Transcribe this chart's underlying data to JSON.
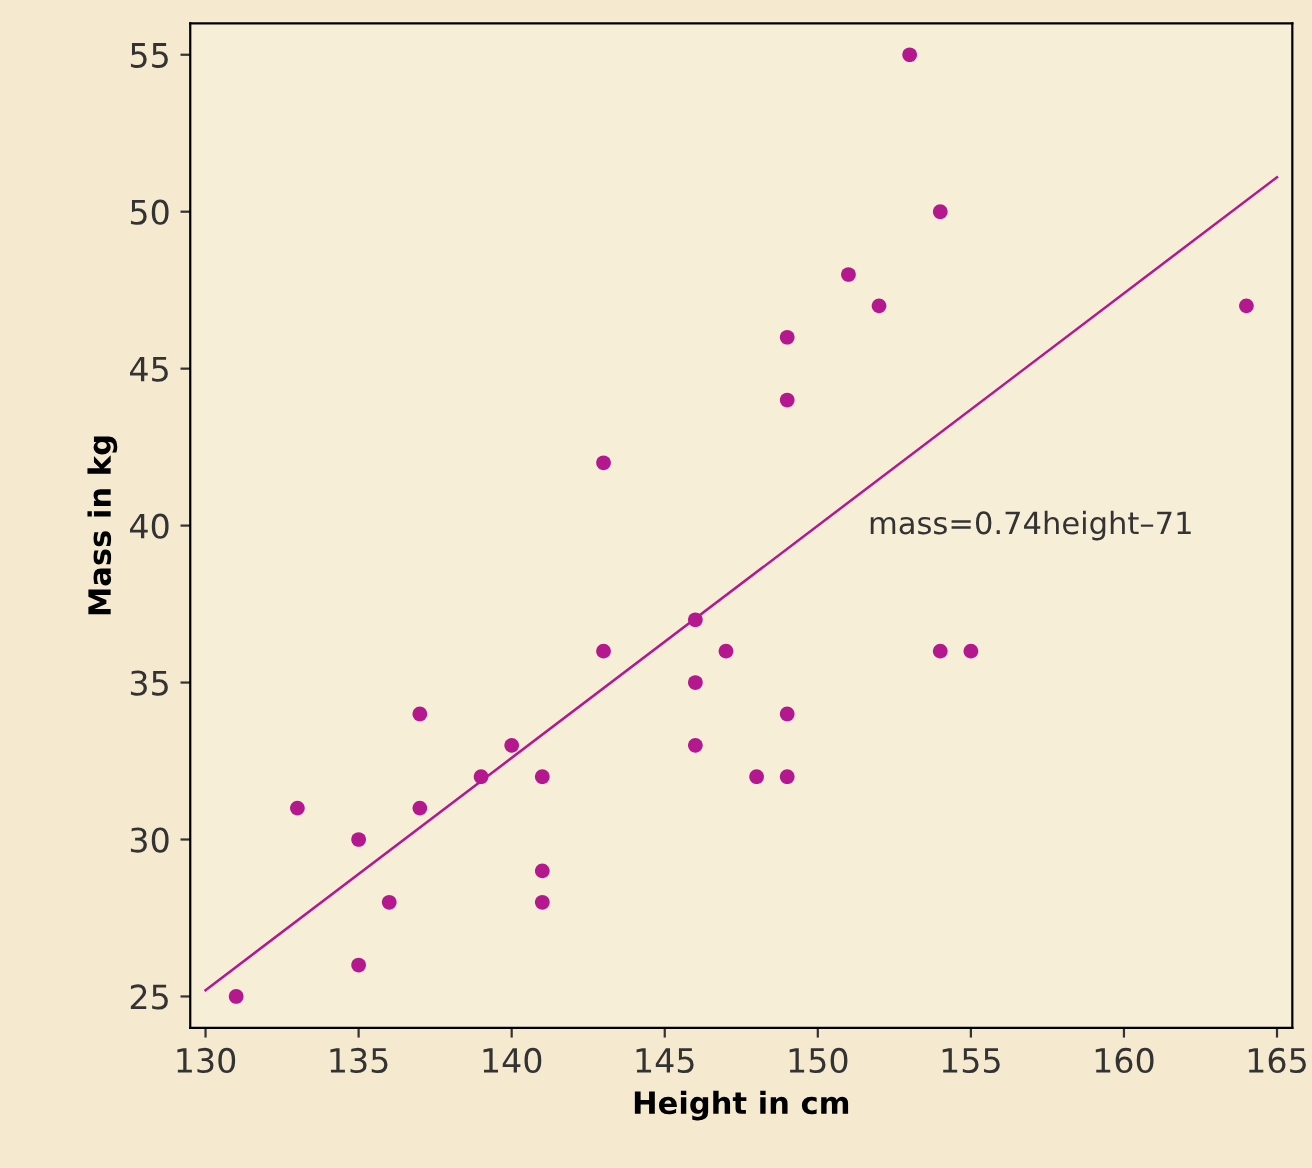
{
  "chart_data": {
    "type": "scatter",
    "xlabel": "Height in cm",
    "ylabel": "Mass in kg",
    "annotations": [
      "mass=0.74height–71"
    ],
    "xlim": [
      129.5,
      165.5
    ],
    "ylim": [
      24,
      56
    ],
    "xticks": [
      130,
      135,
      140,
      145,
      150,
      155,
      160,
      165
    ],
    "yticks": [
      25,
      30,
      35,
      40,
      45,
      50,
      55
    ],
    "grid": false,
    "series": [
      {
        "marker": "circle",
        "color": "#b5178f",
        "x": [
          131,
          133,
          135,
          135,
          136,
          137,
          137,
          139,
          140,
          141,
          141,
          141,
          143,
          143,
          146,
          146,
          146,
          147,
          148,
          149,
          149,
          149,
          149,
          151,
          152,
          153,
          154,
          154,
          155,
          164
        ],
        "values": [
          25,
          31,
          30,
          26,
          28,
          34,
          31,
          32,
          33,
          32,
          29,
          28,
          42,
          36,
          37,
          35,
          33,
          36,
          32,
          46,
          44,
          34,
          32,
          48,
          47,
          55,
          50,
          36,
          36,
          47
        ]
      },
      {
        "type": "line",
        "color": "#b5178f",
        "x": [
          130,
          165
        ],
        "values": [
          25.2,
          51.1
        ]
      }
    ]
  }
}
